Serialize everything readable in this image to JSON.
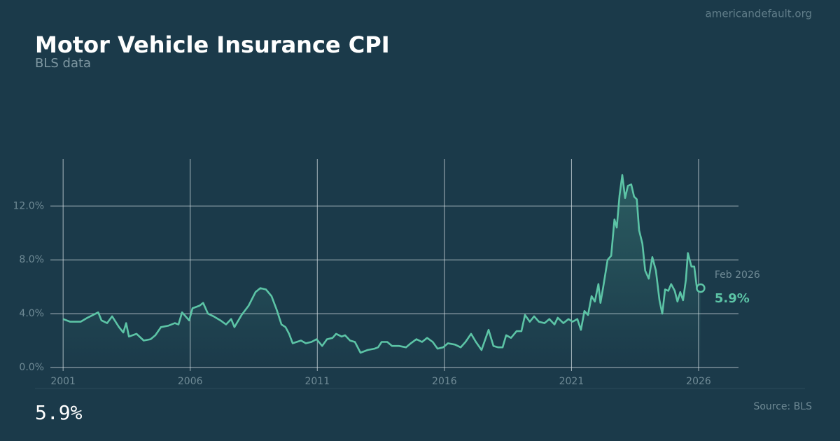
{
  "site": "americandefault.org",
  "source": "Source: BLS",
  "headline": "5.9%",
  "chart_data": {
    "type": "line",
    "title": "Motor Vehicle Insurance CPI",
    "subtitle": "BLS data",
    "annotation": "Feb 2026",
    "xlim": [
      2000.5,
      2027.57
    ],
    "ylim": [
      0,
      15.5
    ],
    "xticks": [
      2001,
      2006,
      2011,
      2016,
      2021,
      2026
    ],
    "yticks": [
      {
        "value": 0,
        "label": "0.0%"
      },
      {
        "value": 4,
        "label": "4.0%"
      },
      {
        "value": 8,
        "label": "8.0%"
      },
      {
        "value": 12,
        "label": "12.0%"
      }
    ],
    "grid": true,
    "series": [
      {
        "name": "Motor Vehicle Insurance CPI",
        "color": "#5cc4a6",
        "x": [
          2001.0,
          2001.28,
          2001.69,
          2001.96,
          2002.38,
          2002.51,
          2002.73,
          2002.93,
          2003.2,
          2003.37,
          2003.48,
          2003.59,
          2003.89,
          2004.17,
          2004.44,
          2004.63,
          2004.85,
          2005.13,
          2005.4,
          2005.54,
          2005.68,
          2005.96,
          2006.09,
          2006.37,
          2006.51,
          2006.7,
          2006.92,
          2007.19,
          2007.41,
          2007.61,
          2007.74,
          2008.02,
          2008.3,
          2008.57,
          2008.76,
          2008.98,
          2009.2,
          2009.4,
          2009.59,
          2009.75,
          2009.89,
          2010.03,
          2010.36,
          2010.55,
          2010.77,
          2010.97,
          2011.19,
          2011.38,
          2011.6,
          2011.74,
          2011.96,
          2012.09,
          2012.29,
          2012.48,
          2012.7,
          2012.98,
          2013.25,
          2013.39,
          2013.53,
          2013.75,
          2013.94,
          2014.21,
          2014.49,
          2014.68,
          2014.9,
          2015.12,
          2015.32,
          2015.54,
          2015.73,
          2015.95,
          2016.14,
          2016.42,
          2016.64,
          2016.83,
          2017.05,
          2017.24,
          2017.46,
          2017.74,
          2017.93,
          2018.12,
          2018.29,
          2018.43,
          2018.62,
          2018.84,
          2019.03,
          2019.17,
          2019.36,
          2019.53,
          2019.72,
          2019.94,
          2020.13,
          2020.33,
          2020.46,
          2020.68,
          2020.88,
          2021.04,
          2021.23,
          2021.37,
          2021.51,
          2021.65,
          2021.79,
          2021.92,
          2022.06,
          2022.14,
          2022.25,
          2022.42,
          2022.56,
          2022.69,
          2022.78,
          2022.89,
          2023.0,
          2023.11,
          2023.22,
          2023.35,
          2023.46,
          2023.57,
          2023.66,
          2023.79,
          2023.9,
          2024.04,
          2024.18,
          2024.32,
          2024.46,
          2024.57,
          2024.68,
          2024.81,
          2024.92,
          2025.06,
          2025.17,
          2025.28,
          2025.39,
          2025.5,
          2025.58,
          2025.72,
          2025.83,
          2025.94,
          2026.08
        ],
        "values": [
          3.6,
          3.4,
          3.4,
          3.7,
          4.1,
          3.5,
          3.3,
          3.8,
          3.0,
          2.6,
          3.3,
          2.3,
          2.5,
          2.0,
          2.1,
          2.4,
          3.0,
          3.1,
          3.3,
          3.2,
          4.1,
          3.5,
          4.4,
          4.6,
          4.8,
          4.0,
          3.8,
          3.5,
          3.2,
          3.6,
          3.0,
          3.9,
          4.6,
          5.6,
          5.9,
          5.8,
          5.3,
          4.3,
          3.2,
          3.0,
          2.5,
          1.8,
          2.0,
          1.8,
          1.9,
          2.1,
          1.6,
          2.1,
          2.2,
          2.5,
          2.3,
          2.4,
          2.0,
          1.9,
          1.1,
          1.3,
          1.4,
          1.5,
          1.9,
          1.9,
          1.6,
          1.6,
          1.5,
          1.8,
          2.1,
          1.9,
          2.2,
          1.9,
          1.4,
          1.5,
          1.8,
          1.7,
          1.5,
          1.9,
          2.5,
          1.9,
          1.3,
          2.8,
          1.6,
          1.5,
          1.5,
          2.4,
          2.2,
          2.7,
          2.7,
          3.9,
          3.4,
          3.8,
          3.4,
          3.3,
          3.6,
          3.2,
          3.7,
          3.3,
          3.6,
          3.4,
          3.6,
          2.8,
          4.2,
          3.9,
          5.3,
          4.9,
          6.2,
          4.8,
          6.0,
          8.0,
          8.3,
          11.0,
          10.4,
          12.8,
          14.3,
          12.6,
          13.5,
          13.6,
          12.7,
          12.5,
          10.2,
          9.2,
          7.2,
          6.6,
          8.2,
          7.2,
          5.0,
          4.0,
          5.8,
          5.7,
          6.2,
          5.7,
          4.9,
          5.6,
          5.0,
          6.5,
          8.5,
          7.5,
          7.5,
          5.8,
          5.9
        ],
        "last_label": "5.9%"
      }
    ]
  }
}
